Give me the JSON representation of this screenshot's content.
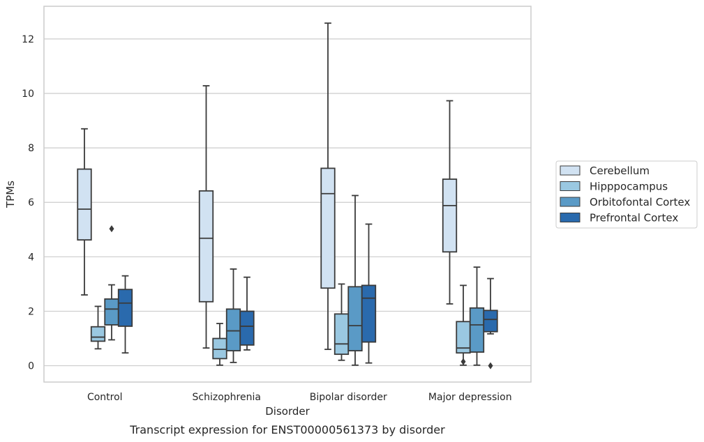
{
  "chart_data": {
    "type": "box",
    "caption": "Transcript expression for ENST00000561373 by disorder",
    "xlabel": "Disorder",
    "ylabel": "TPMs",
    "ylim": [
      -0.6,
      13.2
    ],
    "yticks": [
      0,
      2,
      4,
      6,
      8,
      10,
      12
    ],
    "grid": "horizontal",
    "legend_position": "right",
    "categories": [
      "Control",
      "Schizophrenia",
      "Bipolar disorder",
      "Major depression"
    ],
    "series": [
      {
        "name": "Cerebellum",
        "color": "#d1e2f2",
        "boxes": [
          {
            "whisker_low": 2.6,
            "q1": 4.62,
            "median": 5.75,
            "q3": 7.22,
            "whisker_high": 8.7,
            "outliers": []
          },
          {
            "whisker_low": 0.65,
            "q1": 2.35,
            "median": 4.68,
            "q3": 6.42,
            "whisker_high": 10.28,
            "outliers": []
          },
          {
            "whisker_low": 0.6,
            "q1": 2.85,
            "median": 6.32,
            "q3": 7.25,
            "whisker_high": 12.58,
            "outliers": []
          },
          {
            "whisker_low": 2.27,
            "q1": 4.18,
            "median": 5.88,
            "q3": 6.85,
            "whisker_high": 9.73,
            "outliers": []
          }
        ]
      },
      {
        "name": "Hipppocampus",
        "color": "#9ac8e1",
        "boxes": [
          {
            "whisker_low": 0.62,
            "q1": 0.9,
            "median": 1.05,
            "q3": 1.43,
            "whisker_high": 2.18,
            "outliers": []
          },
          {
            "whisker_low": 0.02,
            "q1": 0.26,
            "median": 0.6,
            "q3": 1.0,
            "whisker_high": 1.55,
            "outliers": []
          },
          {
            "whisker_low": 0.2,
            "q1": 0.42,
            "median": 0.8,
            "q3": 1.9,
            "whisker_high": 3.0,
            "outliers": []
          },
          {
            "whisker_low": 0.02,
            "q1": 0.47,
            "median": 0.65,
            "q3": 1.62,
            "whisker_high": 2.95,
            "outliers": [
              0.15
            ]
          }
        ]
      },
      {
        "name": "Orbitofontal Cortex",
        "color": "#5a9ac6",
        "boxes": [
          {
            "whisker_low": 0.95,
            "q1": 1.5,
            "median": 2.08,
            "q3": 2.45,
            "whisker_high": 2.97,
            "outliers": [
              5.03
            ]
          },
          {
            "whisker_low": 0.12,
            "q1": 0.55,
            "median": 1.28,
            "q3": 2.08,
            "whisker_high": 3.55,
            "outliers": []
          },
          {
            "whisker_low": 0.02,
            "q1": 0.55,
            "median": 1.47,
            "q3": 2.9,
            "whisker_high": 6.25,
            "outliers": []
          },
          {
            "whisker_low": 0.02,
            "q1": 0.5,
            "median": 1.5,
            "q3": 2.12,
            "whisker_high": 3.62,
            "outliers": []
          }
        ]
      },
      {
        "name": "Prefrontal Cortex",
        "color": "#2a6aad",
        "boxes": [
          {
            "whisker_low": 0.47,
            "q1": 1.45,
            "median": 2.3,
            "q3": 2.8,
            "whisker_high": 3.3,
            "outliers": []
          },
          {
            "whisker_low": 0.58,
            "q1": 0.76,
            "median": 1.45,
            "q3": 2.0,
            "whisker_high": 3.25,
            "outliers": []
          },
          {
            "whisker_low": 0.1,
            "q1": 0.87,
            "median": 2.48,
            "q3": 2.95,
            "whisker_high": 5.2,
            "outliers": []
          },
          {
            "whisker_low": 1.17,
            "q1": 1.25,
            "median": 1.7,
            "q3": 2.03,
            "whisker_high": 3.2,
            "outliers": [
              0.0
            ]
          }
        ]
      }
    ]
  }
}
